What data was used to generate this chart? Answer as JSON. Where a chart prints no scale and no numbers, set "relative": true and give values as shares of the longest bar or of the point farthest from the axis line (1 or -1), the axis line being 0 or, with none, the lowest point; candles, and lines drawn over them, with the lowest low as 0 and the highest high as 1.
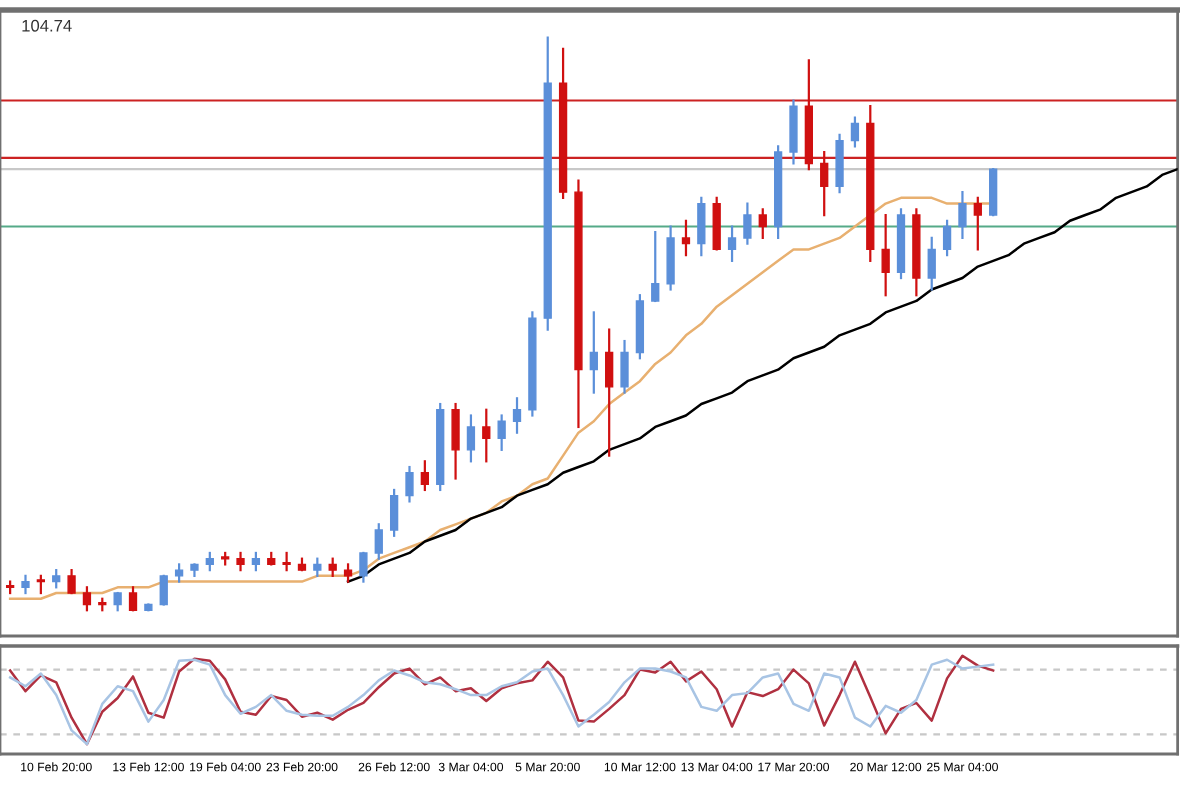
{
  "chart_data": [
    {
      "type": "candlestick",
      "relative": true,
      "tick_labels": false,
      "annotations": [
        "104.74"
      ],
      "categories": [
        null,
        null,
        null,
        null,
        null,
        null,
        null,
        null,
        null,
        null,
        null,
        null,
        null,
        null,
        null,
        null,
        null,
        null,
        null,
        null,
        null,
        null,
        null,
        null,
        null,
        null,
        null,
        null,
        null,
        null,
        null,
        null,
        null,
        null,
        null,
        null,
        null,
        null,
        null,
        null,
        null,
        null,
        null,
        null,
        null,
        null,
        null,
        null,
        null,
        null,
        null,
        null,
        null,
        null,
        null,
        null,
        null,
        null,
        null,
        null,
        null,
        null,
        null,
        null,
        null,
        null,
        null,
        null,
        null,
        null,
        null,
        null,
        null,
        null,
        null,
        null,
        null
      ],
      "ohlc": [
        [
          0.04,
          0.05,
          0.03,
          0.04
        ],
        [
          0.04,
          0.06,
          0.03,
          0.05
        ],
        [
          0.05,
          0.06,
          0.03,
          0.05
        ],
        [
          0.05,
          0.07,
          0.04,
          0.06
        ],
        [
          0.06,
          0.07,
          0.03,
          0.03
        ],
        [
          0.03,
          0.04,
          0.0,
          0.01
        ],
        [
          0.01,
          0.02,
          0.0,
          0.01
        ],
        [
          0.01,
          0.03,
          0.0,
          0.03
        ],
        [
          0.03,
          0.04,
          0.0,
          0.0
        ],
        [
          0.0,
          0.01,
          0.0,
          0.01
        ],
        [
          0.01,
          0.06,
          0.01,
          0.06
        ],
        [
          0.06,
          0.08,
          0.05,
          0.07
        ],
        [
          0.07,
          0.08,
          0.06,
          0.08
        ],
        [
          0.08,
          0.1,
          0.07,
          0.09
        ],
        [
          0.09,
          0.1,
          0.08,
          0.09
        ],
        [
          0.09,
          0.1,
          0.07,
          0.08
        ],
        [
          0.08,
          0.1,
          0.07,
          0.09
        ],
        [
          0.09,
          0.1,
          0.08,
          0.08
        ],
        [
          0.08,
          0.1,
          0.07,
          0.08
        ],
        [
          0.08,
          0.09,
          0.07,
          0.07
        ],
        [
          0.07,
          0.09,
          0.06,
          0.08
        ],
        [
          0.08,
          0.09,
          0.06,
          0.07
        ],
        [
          0.07,
          0.08,
          0.05,
          0.06
        ],
        [
          0.06,
          0.1,
          0.05,
          0.1
        ],
        [
          0.1,
          0.15,
          0.09,
          0.14
        ],
        [
          0.14,
          0.21,
          0.13,
          0.2
        ],
        [
          0.2,
          0.25,
          0.19,
          0.24
        ],
        [
          0.24,
          0.26,
          0.21,
          0.22
        ],
        [
          0.22,
          0.36,
          0.21,
          0.35
        ],
        [
          0.35,
          0.36,
          0.23,
          0.28
        ],
        [
          0.28,
          0.34,
          0.26,
          0.32
        ],
        [
          0.32,
          0.35,
          0.26,
          0.3
        ],
        [
          0.3,
          0.34,
          0.28,
          0.33
        ],
        [
          0.33,
          0.37,
          0.31,
          0.35
        ],
        [
          0.35,
          0.52,
          0.34,
          0.51
        ],
        [
          0.51,
          1.0,
          0.49,
          0.92
        ],
        [
          0.92,
          0.98,
          0.72,
          0.73
        ],
        [
          0.73,
          0.75,
          0.32,
          0.42
        ],
        [
          0.42,
          0.52,
          0.38,
          0.45
        ],
        [
          0.45,
          0.49,
          0.27,
          0.39
        ],
        [
          0.39,
          0.47,
          0.38,
          0.45
        ],
        [
          0.45,
          0.55,
          0.44,
          0.54
        ],
        [
          0.54,
          0.66,
          0.54,
          0.57
        ],
        [
          0.57,
          0.67,
          0.56,
          0.65
        ],
        [
          0.65,
          0.68,
          0.62,
          0.64
        ],
        [
          0.64,
          0.72,
          0.62,
          0.71
        ],
        [
          0.71,
          0.72,
          0.63,
          0.63
        ],
        [
          0.63,
          0.67,
          0.61,
          0.65
        ],
        [
          0.65,
          0.71,
          0.64,
          0.69
        ],
        [
          0.69,
          0.7,
          0.65,
          0.67
        ],
        [
          0.67,
          0.81,
          0.65,
          0.8
        ],
        [
          0.8,
          0.89,
          0.78,
          0.88
        ],
        [
          0.88,
          0.96,
          0.77,
          0.78
        ],
        [
          0.78,
          0.8,
          0.69,
          0.74
        ],
        [
          0.74,
          0.83,
          0.73,
          0.82
        ],
        [
          0.82,
          0.86,
          0.81,
          0.85
        ],
        [
          0.85,
          0.88,
          0.61,
          0.63
        ],
        [
          0.63,
          0.69,
          0.55,
          0.59
        ],
        [
          0.59,
          0.7,
          0.58,
          0.69
        ],
        [
          0.69,
          0.7,
          0.55,
          0.58
        ],
        [
          0.58,
          0.65,
          0.56,
          0.63
        ],
        [
          0.63,
          0.68,
          0.62,
          0.67
        ],
        [
          0.67,
          0.73,
          0.65,
          0.71
        ],
        [
          0.71,
          0.72,
          0.63,
          0.69
        ],
        [
          0.69,
          0.77,
          0.69,
          0.77
        ],
        null,
        null,
        null,
        null,
        null,
        null,
        null,
        null,
        null,
        null,
        null,
        null
      ],
      "colors": [
        "#d01010",
        "#5b8fd9",
        "#d01010",
        "#5b8fd9",
        "#d01010",
        "#d01010",
        "#d01010",
        "#5b8fd9",
        "#d01010",
        "#5b8fd9",
        "#5b8fd9",
        "#5b8fd9",
        "#5b8fd9",
        "#5b8fd9",
        "#d01010",
        "#d01010",
        "#5b8fd9",
        "#d01010",
        "#d01010",
        "#d01010",
        "#5b8fd9",
        "#d01010",
        "#d01010",
        "#5b8fd9",
        "#5b8fd9",
        "#5b8fd9",
        "#5b8fd9",
        "#d01010",
        "#5b8fd9",
        "#d01010",
        "#5b8fd9",
        "#d01010",
        "#5b8fd9",
        "#5b8fd9",
        "#5b8fd9",
        "#5b8fd9",
        "#d01010",
        "#d01010",
        "#5b8fd9",
        "#d01010",
        "#5b8fd9",
        "#5b8fd9",
        "#5b8fd9",
        "#5b8fd9",
        "#d01010",
        "#5b8fd9",
        "#d01010",
        "#5b8fd9",
        "#5b8fd9",
        "#d01010",
        "#5b8fd9",
        "#5b8fd9",
        "#d01010",
        "#d01010",
        "#5b8fd9",
        "#5b8fd9",
        "#d01010",
        "#d01010",
        "#5b8fd9",
        "#d01010",
        "#5b8fd9",
        "#5b8fd9",
        "#5b8fd9",
        "#d01010",
        "#5b8fd9",
        null,
        null,
        null,
        null,
        null,
        null,
        null,
        null,
        null,
        null,
        null,
        null
      ],
      "ref_lines": [
        {
          "axis": "y",
          "value": 0.89,
          "color": "#cc2222"
        },
        {
          "axis": "y",
          "value": 0.79,
          "color": "#cc2222"
        },
        {
          "axis": "y",
          "value": 0.77,
          "color": "#c8c8c8"
        },
        {
          "axis": "y",
          "value": 0.67,
          "color": "#55aa88"
        }
      ],
      "series": [
        {
          "type": "line",
          "color": "#e8b070",
          "values": [
            0.02,
            0.02,
            0.02,
            0.03,
            0.03,
            0.03,
            0.03,
            0.04,
            0.04,
            0.04,
            0.05,
            0.05,
            0.05,
            0.05,
            0.05,
            0.05,
            0.05,
            0.05,
            0.05,
            0.05,
            0.06,
            0.06,
            0.06,
            0.07,
            0.09,
            0.1,
            0.11,
            0.12,
            0.14,
            0.15,
            0.16,
            0.17,
            0.19,
            0.2,
            0.22,
            0.23,
            0.27,
            0.31,
            0.33,
            0.36,
            0.38,
            0.4,
            0.43,
            0.45,
            0.48,
            0.5,
            0.53,
            0.55,
            0.57,
            0.59,
            0.61,
            0.63,
            0.63,
            0.64,
            0.65,
            0.67,
            0.69,
            0.71,
            0.72,
            0.72,
            0.72,
            0.71,
            0.71,
            0.71,
            0.71,
            null,
            null,
            null,
            null,
            null,
            null,
            null,
            null,
            null,
            null,
            null,
            null
          ]
        },
        {
          "type": "line",
          "color": "#000000",
          "values": [
            null,
            null,
            null,
            null,
            null,
            null,
            null,
            null,
            null,
            null,
            null,
            null,
            null,
            null,
            null,
            null,
            null,
            null,
            null,
            null,
            null,
            null,
            0.05,
            0.06,
            0.08,
            0.09,
            0.1,
            0.12,
            0.13,
            0.14,
            0.16,
            0.17,
            0.18,
            0.2,
            0.21,
            0.22,
            0.24,
            0.25,
            0.26,
            0.28,
            0.29,
            0.3,
            0.32,
            0.33,
            0.34,
            0.36,
            0.37,
            0.38,
            0.4,
            0.41,
            0.42,
            0.44,
            0.45,
            0.46,
            0.48,
            0.49,
            0.5,
            0.52,
            0.53,
            0.54,
            0.56,
            0.57,
            0.58,
            0.6,
            0.61,
            0.62,
            0.64,
            0.65,
            0.66,
            0.68,
            0.69,
            0.7,
            0.72,
            0.73,
            0.74,
            0.76,
            0.77
          ]
        }
      ]
    },
    {
      "type": "line",
      "relative": true,
      "tick_labels": "x",
      "categories": [
        null,
        null,
        null,
        "10 Feb 20:00",
        null,
        null,
        null,
        null,
        null,
        "13 Feb 12:00",
        null,
        null,
        null,
        null,
        "19 Feb 04:00",
        null,
        null,
        null,
        null,
        "23 Feb 20:00",
        null,
        null,
        null,
        null,
        null,
        "26 Feb 12:00",
        null,
        null,
        null,
        null,
        "3 Mar 04:00",
        null,
        null,
        null,
        null,
        "5 Mar 20:00",
        null,
        null,
        null,
        null,
        null,
        "10 Mar 12:00",
        null,
        null,
        null,
        null,
        "13 Mar 04:00",
        null,
        null,
        null,
        null,
        "17 Mar 20:00",
        null,
        null,
        null,
        null,
        null,
        "20 Mar 12:00",
        null,
        null,
        null,
        null,
        "25 Mar 04:00",
        null,
        null,
        null,
        null,
        null,
        null,
        null,
        null,
        null,
        null,
        null,
        null,
        null,
        null
      ],
      "ref_lines": [
        {
          "axis": "y",
          "value": 0.86,
          "color": "#c8c8c8",
          "line_style": "dashed"
        },
        {
          "axis": "y",
          "value": 0.2,
          "color": "#c8c8c8",
          "line_style": "dashed"
        }
      ],
      "series": [
        {
          "color": "#b03040",
          "values": [
            0.85,
            0.64,
            0.8,
            0.73,
            0.37,
            0.1,
            0.43,
            0.57,
            0.79,
            0.42,
            0.37,
            0.84,
            0.97,
            0.95,
            0.76,
            0.43,
            0.4,
            0.59,
            0.55,
            0.38,
            0.42,
            0.35,
            0.45,
            0.52,
            0.68,
            0.82,
            0.87,
            0.71,
            0.78,
            0.64,
            0.67,
            0.54,
            0.67,
            0.72,
            0.75,
            0.94,
            0.78,
            0.34,
            0.33,
            0.46,
            0.6,
            0.86,
            0.83,
            0.94,
            0.74,
            0.84,
            0.66,
            0.28,
            0.63,
            0.59,
            0.66,
            0.86,
            0.72,
            0.29,
            0.6,
            0.94,
            0.58,
            0.21,
            0.46,
            0.52,
            0.34,
            0.77,
            1.0,
            0.9,
            0.85,
            null,
            null,
            null,
            null,
            null,
            null,
            null,
            null,
            null,
            null,
            null,
            null
          ]
        },
        {
          "color": "#a8c4e4",
          "values": [
            0.78,
            0.69,
            0.82,
            0.6,
            0.24,
            0.1,
            0.51,
            0.69,
            0.64,
            0.33,
            0.55,
            0.95,
            0.96,
            0.91,
            0.6,
            0.41,
            0.48,
            0.6,
            0.44,
            0.4,
            0.39,
            0.39,
            0.48,
            0.6,
            0.75,
            0.85,
            0.8,
            0.73,
            0.71,
            0.66,
            0.6,
            0.6,
            0.69,
            0.73,
            0.84,
            0.87,
            0.6,
            0.28,
            0.4,
            0.53,
            0.73,
            0.87,
            0.87,
            0.84,
            0.78,
            0.48,
            0.44,
            0.6,
            0.62,
            0.78,
            0.82,
            0.51,
            0.44,
            0.82,
            0.78,
            0.37,
            0.28,
            0.49,
            0.42,
            0.55,
            0.91,
            0.96,
            0.87,
            0.89,
            0.91,
            null,
            null,
            null,
            null,
            null,
            null,
            null,
            null,
            null,
            null,
            null,
            null
          ]
        }
      ]
    }
  ]
}
